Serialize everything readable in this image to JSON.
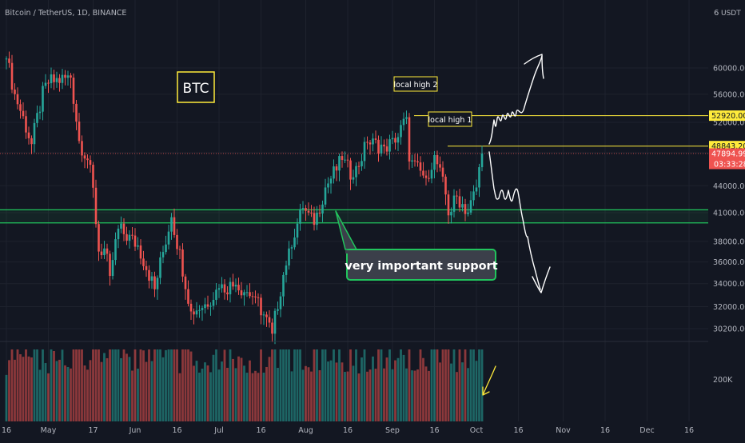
{
  "header": {
    "symbol_line": "Bitcoin / TetherUS, 1D, BINANCE",
    "scale_top_label": "6",
    "currency": "USDT"
  },
  "colors": {
    "background": "#131722",
    "grid": "#1e222d",
    "up": "#26a69a",
    "down": "#ef5350",
    "level_line": "#ffeb3b",
    "support_line": "#21c55d",
    "annotation_text": "#ffffff"
  },
  "price_axis": {
    "ticks": [
      "60000.00",
      "56000.00",
      "52000.00",
      "48000.00",
      "44000.00",
      "41000.00",
      "38000.00",
      "36000.00",
      "34000.00",
      "32000.00",
      "30200.00"
    ],
    "level_labels": [
      {
        "text": "52920.00",
        "value": 52920,
        "style": "yellow"
      },
      {
        "text": "48843.20",
        "value": 48843.2,
        "style": "yellow"
      },
      {
        "text": "47894.99",
        "value": 47894.99,
        "style": "red"
      }
    ],
    "countdown": "03:33:28"
  },
  "volume_axis": {
    "ticks": [
      "200K"
    ]
  },
  "time_axis": {
    "labels": [
      "16",
      "May",
      "17",
      "Jun",
      "16",
      "Jul",
      "16",
      "Aug",
      "16",
      "Sep",
      "16",
      "Oct",
      "16",
      "Nov",
      "16",
      "Dec",
      "16"
    ]
  },
  "annotations": {
    "ticker_box": "BTC",
    "local_high_1": "local high 1",
    "local_high_2": "local high 2",
    "support_label": "very important support"
  },
  "chart_data": {
    "type": "candlestick",
    "title": "Bitcoin / TetherUS, 1D, BINANCE",
    "date_range": [
      "2021-04-16",
      "2021-10-03"
    ],
    "ylim": [
      29000,
      63000
    ],
    "log_scale": true,
    "close_anchors": [
      {
        "date": "2021-04-16",
        "close": 61500
      },
      {
        "date": "2021-04-19",
        "close": 56000
      },
      {
        "date": "2021-04-25",
        "close": 49100
      },
      {
        "date": "2021-04-30",
        "close": 57700
      },
      {
        "date": "2021-05-09",
        "close": 58500
      },
      {
        "date": "2021-05-12",
        "close": 49500
      },
      {
        "date": "2021-05-16",
        "close": 46500
      },
      {
        "date": "2021-05-19",
        "close": 37000
      },
      {
        "date": "2021-05-21",
        "close": 37300
      },
      {
        "date": "2021-05-23",
        "close": 34700
      },
      {
        "date": "2021-05-26",
        "close": 39300
      },
      {
        "date": "2021-06-02",
        "close": 37600
      },
      {
        "date": "2021-06-08",
        "close": 33500
      },
      {
        "date": "2021-06-14",
        "close": 40500
      },
      {
        "date": "2021-06-21",
        "close": 31600
      },
      {
        "date": "2021-06-26",
        "close": 32200
      },
      {
        "date": "2021-07-01",
        "close": 33600
      },
      {
        "date": "2021-07-07",
        "close": 33900
      },
      {
        "date": "2021-07-14",
        "close": 32800
      },
      {
        "date": "2021-07-20",
        "close": 29800
      },
      {
        "date": "2021-07-26",
        "close": 37300
      },
      {
        "date": "2021-07-31",
        "close": 41500
      },
      {
        "date": "2021-08-04",
        "close": 39700
      },
      {
        "date": "2021-08-08",
        "close": 43800
      },
      {
        "date": "2021-08-14",
        "close": 47100
      },
      {
        "date": "2021-08-18",
        "close": 45000
      },
      {
        "date": "2021-08-23",
        "close": 49300
      },
      {
        "date": "2021-08-29",
        "close": 48800
      },
      {
        "date": "2021-09-02",
        "close": 49300
      },
      {
        "date": "2021-09-06",
        "close": 52700
      },
      {
        "date": "2021-09-07",
        "close": 46900
      },
      {
        "date": "2021-09-13",
        "close": 44900
      },
      {
        "date": "2021-09-16",
        "close": 47700
      },
      {
        "date": "2021-09-20",
        "close": 43000
      },
      {
        "date": "2021-09-21",
        "close": 40700
      },
      {
        "date": "2021-09-24",
        "close": 42800
      },
      {
        "date": "2021-09-28",
        "close": 41000
      },
      {
        "date": "2021-10-01",
        "close": 43800
      },
      {
        "date": "2021-10-03",
        "close": 47895
      }
    ],
    "horizontal_levels": [
      {
        "label": "local high 2",
        "value": 52920
      },
      {
        "label": "local high 1",
        "value": 48843.2
      }
    ],
    "support_zone": {
      "label": "very important support",
      "low": 39900,
      "high": 41300
    },
    "last_price": 47894.99,
    "volume_tick": "200K"
  }
}
